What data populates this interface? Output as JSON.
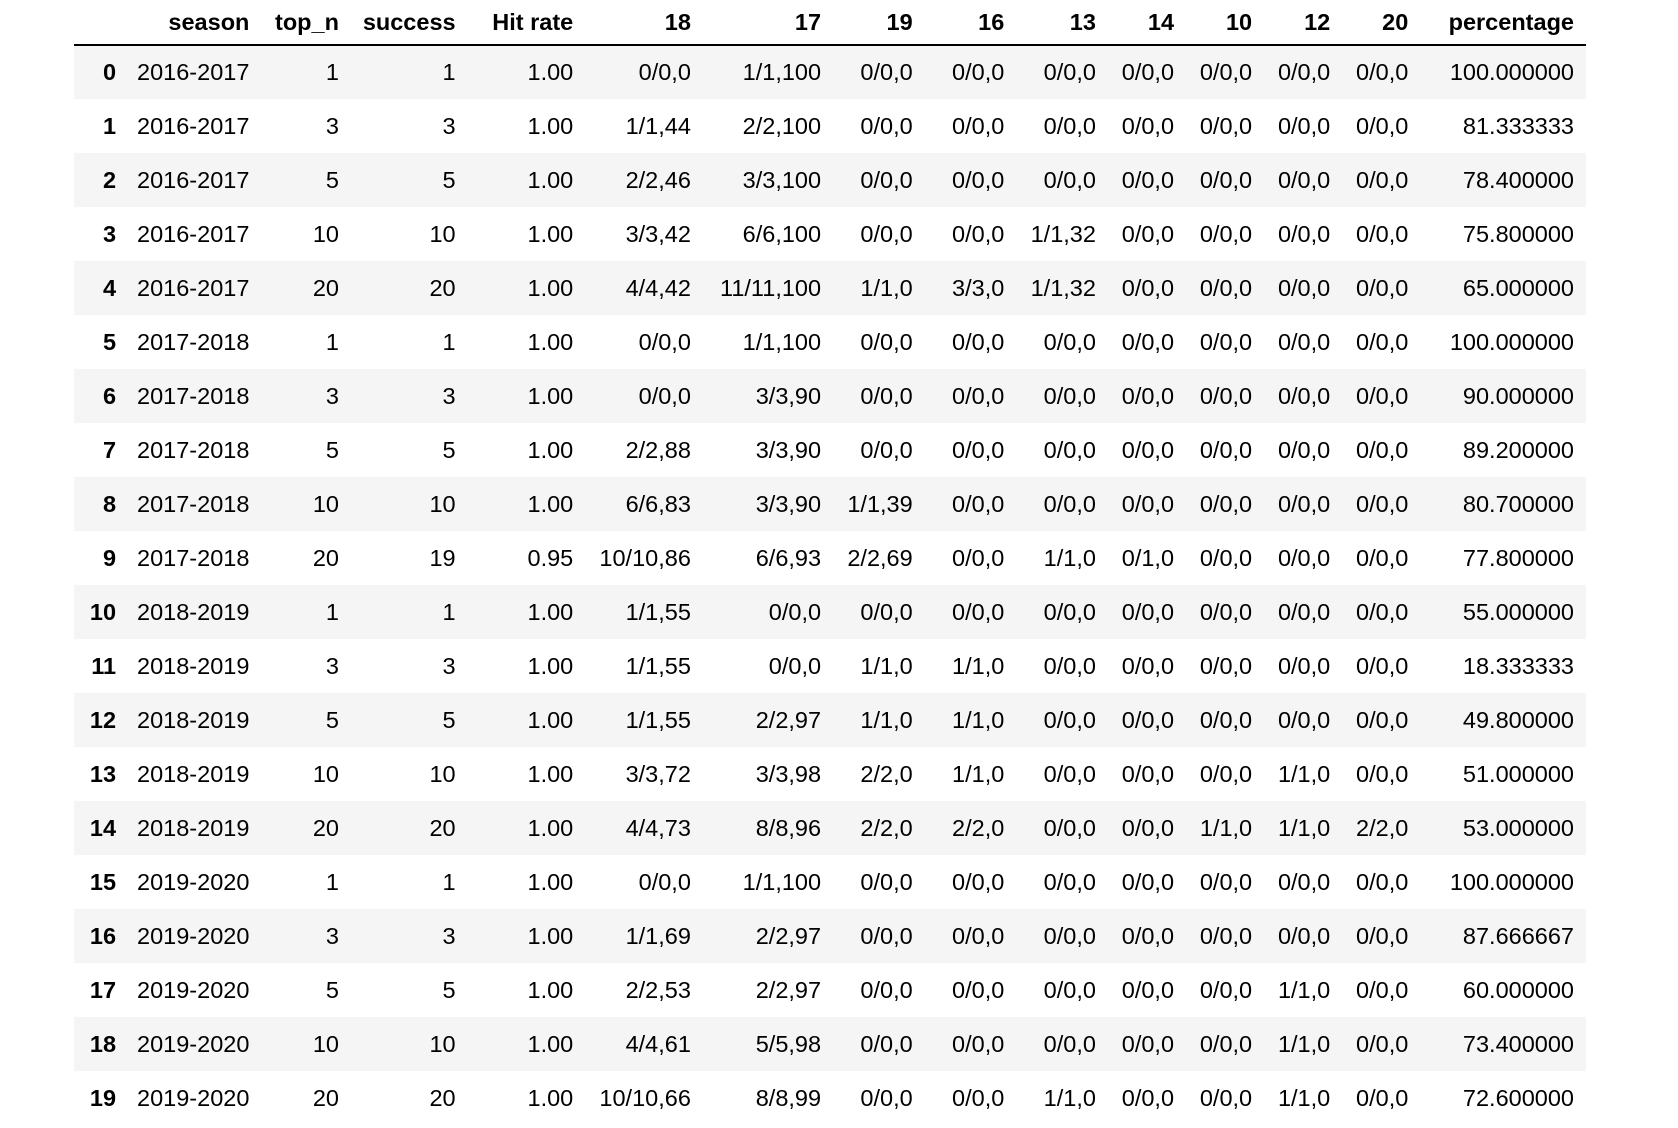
{
  "table": {
    "columns": [
      "",
      "season",
      "top_n",
      "success",
      "Hit rate",
      "18",
      "17",
      "19",
      "16",
      "13",
      "14",
      "10",
      "12",
      "20",
      "percentage"
    ],
    "rows": [
      [
        "0",
        "2016-2017",
        "1",
        "1",
        "1.00",
        "0/0,0",
        "1/1,100",
        "0/0,0",
        "0/0,0",
        "0/0,0",
        "0/0,0",
        "0/0,0",
        "0/0,0",
        "0/0,0",
        "100.000000"
      ],
      [
        "1",
        "2016-2017",
        "3",
        "3",
        "1.00",
        "1/1,44",
        "2/2,100",
        "0/0,0",
        "0/0,0",
        "0/0,0",
        "0/0,0",
        "0/0,0",
        "0/0,0",
        "0/0,0",
        "81.333333"
      ],
      [
        "2",
        "2016-2017",
        "5",
        "5",
        "1.00",
        "2/2,46",
        "3/3,100",
        "0/0,0",
        "0/0,0",
        "0/0,0",
        "0/0,0",
        "0/0,0",
        "0/0,0",
        "0/0,0",
        "78.400000"
      ],
      [
        "3",
        "2016-2017",
        "10",
        "10",
        "1.00",
        "3/3,42",
        "6/6,100",
        "0/0,0",
        "0/0,0",
        "1/1,32",
        "0/0,0",
        "0/0,0",
        "0/0,0",
        "0/0,0",
        "75.800000"
      ],
      [
        "4",
        "2016-2017",
        "20",
        "20",
        "1.00",
        "4/4,42",
        "11/11,100",
        "1/1,0",
        "3/3,0",
        "1/1,32",
        "0/0,0",
        "0/0,0",
        "0/0,0",
        "0/0,0",
        "65.000000"
      ],
      [
        "5",
        "2017-2018",
        "1",
        "1",
        "1.00",
        "0/0,0",
        "1/1,100",
        "0/0,0",
        "0/0,0",
        "0/0,0",
        "0/0,0",
        "0/0,0",
        "0/0,0",
        "0/0,0",
        "100.000000"
      ],
      [
        "6",
        "2017-2018",
        "3",
        "3",
        "1.00",
        "0/0,0",
        "3/3,90",
        "0/0,0",
        "0/0,0",
        "0/0,0",
        "0/0,0",
        "0/0,0",
        "0/0,0",
        "0/0,0",
        "90.000000"
      ],
      [
        "7",
        "2017-2018",
        "5",
        "5",
        "1.00",
        "2/2,88",
        "3/3,90",
        "0/0,0",
        "0/0,0",
        "0/0,0",
        "0/0,0",
        "0/0,0",
        "0/0,0",
        "0/0,0",
        "89.200000"
      ],
      [
        "8",
        "2017-2018",
        "10",
        "10",
        "1.00",
        "6/6,83",
        "3/3,90",
        "1/1,39",
        "0/0,0",
        "0/0,0",
        "0/0,0",
        "0/0,0",
        "0/0,0",
        "0/0,0",
        "80.700000"
      ],
      [
        "9",
        "2017-2018",
        "20",
        "19",
        "0.95",
        "10/10,86",
        "6/6,93",
        "2/2,69",
        "0/0,0",
        "1/1,0",
        "0/1,0",
        "0/0,0",
        "0/0,0",
        "0/0,0",
        "77.800000"
      ],
      [
        "10",
        "2018-2019",
        "1",
        "1",
        "1.00",
        "1/1,55",
        "0/0,0",
        "0/0,0",
        "0/0,0",
        "0/0,0",
        "0/0,0",
        "0/0,0",
        "0/0,0",
        "0/0,0",
        "55.000000"
      ],
      [
        "11",
        "2018-2019",
        "3",
        "3",
        "1.00",
        "1/1,55",
        "0/0,0",
        "1/1,0",
        "1/1,0",
        "0/0,0",
        "0/0,0",
        "0/0,0",
        "0/0,0",
        "0/0,0",
        "18.333333"
      ],
      [
        "12",
        "2018-2019",
        "5",
        "5",
        "1.00",
        "1/1,55",
        "2/2,97",
        "1/1,0",
        "1/1,0",
        "0/0,0",
        "0/0,0",
        "0/0,0",
        "0/0,0",
        "0/0,0",
        "49.800000"
      ],
      [
        "13",
        "2018-2019",
        "10",
        "10",
        "1.00",
        "3/3,72",
        "3/3,98",
        "2/2,0",
        "1/1,0",
        "0/0,0",
        "0/0,0",
        "0/0,0",
        "1/1,0",
        "0/0,0",
        "51.000000"
      ],
      [
        "14",
        "2018-2019",
        "20",
        "20",
        "1.00",
        "4/4,73",
        "8/8,96",
        "2/2,0",
        "2/2,0",
        "0/0,0",
        "0/0,0",
        "1/1,0",
        "1/1,0",
        "2/2,0",
        "53.000000"
      ],
      [
        "15",
        "2019-2020",
        "1",
        "1",
        "1.00",
        "0/0,0",
        "1/1,100",
        "0/0,0",
        "0/0,0",
        "0/0,0",
        "0/0,0",
        "0/0,0",
        "0/0,0",
        "0/0,0",
        "100.000000"
      ],
      [
        "16",
        "2019-2020",
        "3",
        "3",
        "1.00",
        "1/1,69",
        "2/2,97",
        "0/0,0",
        "0/0,0",
        "0/0,0",
        "0/0,0",
        "0/0,0",
        "0/0,0",
        "0/0,0",
        "87.666667"
      ],
      [
        "17",
        "2019-2020",
        "5",
        "5",
        "1.00",
        "2/2,53",
        "2/2,97",
        "0/0,0",
        "0/0,0",
        "0/0,0",
        "0/0,0",
        "0/0,0",
        "1/1,0",
        "0/0,0",
        "60.000000"
      ],
      [
        "18",
        "2019-2020",
        "10",
        "10",
        "1.00",
        "4/4,61",
        "5/5,98",
        "0/0,0",
        "0/0,0",
        "0/0,0",
        "0/0,0",
        "0/0,0",
        "1/1,0",
        "0/0,0",
        "73.400000"
      ],
      [
        "19",
        "2019-2020",
        "20",
        "20",
        "1.00",
        "10/10,66",
        "8/8,99",
        "0/0,0",
        "0/0,0",
        "1/1,0",
        "0/0,0",
        "0/0,0",
        "1/1,0",
        "0/0,0",
        "72.600000"
      ]
    ]
  },
  "colors": {
    "stripe": "#f5f5f5",
    "text": "#000000",
    "header_rule": "#000000"
  }
}
